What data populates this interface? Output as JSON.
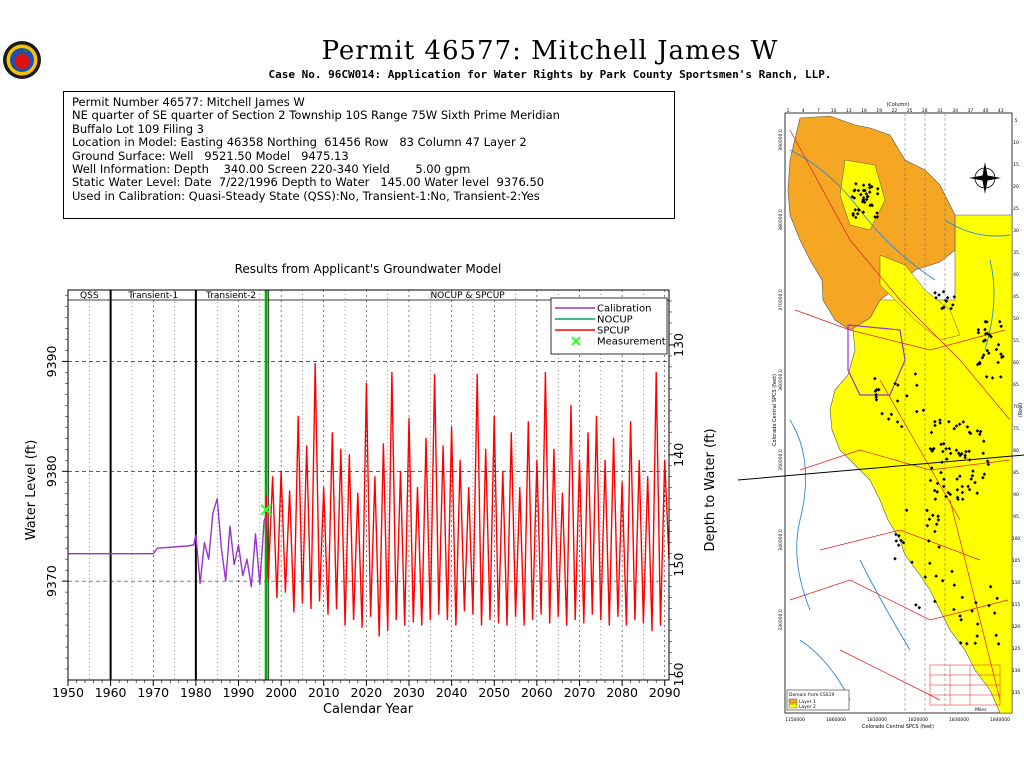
{
  "header": {
    "title": "Permit  46577:   Mitchell James W",
    "subtitle": "Case No. 96CW014: Application for Water Rights by Park County Sportsmen's Ranch, LLP."
  },
  "info": {
    "lines": [
      "Permit Number 46577: Mitchell James W",
      "",
      "NE quarter of SE quarter of Section 2 Township 10S Range 75W Sixth Prime Meridian",
      "Buffalo Lot 109 Filing 3",
      "Location in Model: Easting 46358 Northing  61456 Row   83 Column 47 Layer 2",
      "Ground Surface: Well   9521.50 Model   9475.13",
      "Well Information: Depth    340.00 Screen 220-340 Yield       5.00 gpm",
      "Static Water Level: Date  7/22/1996 Depth to Water   145.00 Water level  9376.50",
      "Used in Calibration: Quasi-Steady State (QSS):No, Transient-1:No, Transient-2:Yes"
    ]
  },
  "chart_data": {
    "type": "line",
    "title": "Results from Applicant's Groundwater Model",
    "xlabel": "Calendar Year",
    "ylabel": "Water Level (ft)",
    "y2label": "Depth to Water (ft)",
    "xlim": [
      1950,
      2091
    ],
    "ylim": [
      9361,
      9396.5
    ],
    "y2lim": [
      160.5,
      125
    ],
    "x_ticks": [
      1950,
      1960,
      1970,
      1980,
      1990,
      2000,
      2010,
      2020,
      2030,
      2040,
      2050,
      2060,
      2070,
      2080,
      2090
    ],
    "y_ticks": [
      9370,
      9380,
      9390
    ],
    "y2_ticks": [
      130,
      140,
      150,
      160
    ],
    "periods": [
      {
        "label": "QSS",
        "start": 1950,
        "end": 1960
      },
      {
        "label": "Transient-1",
        "start": 1960,
        "end": 1980
      },
      {
        "label": "Transient-2",
        "start": 1980,
        "end": 1996.5
      },
      {
        "label": "NOCUP  &  SPCUP",
        "start": 1996.5,
        "end": 2091
      }
    ],
    "period_dividers": [
      1960,
      1980
    ],
    "current_marker_year": 1996.5,
    "legend": {
      "placement": "top-right",
      "entries": [
        {
          "name": "Calibration",
          "color": "#9933cc",
          "kind": "line"
        },
        {
          "name": "NOCUP",
          "color": "#00aa66",
          "kind": "line"
        },
        {
          "name": "SPCUP",
          "color": "#ff0000",
          "kind": "line"
        },
        {
          "name": "Measurement",
          "color": "#33ff33",
          "kind": "marker"
        }
      ]
    },
    "series": [
      {
        "name": "Calibration",
        "color": "#9933cc",
        "x": [
          1950,
          1970,
          1971,
          1978,
          1979.5,
          1980,
          1981,
          1982,
          1983,
          1984,
          1985,
          1986,
          1987,
          1988,
          1989,
          1990,
          1991,
          1992,
          1993,
          1994,
          1995,
          1996,
          1996.5
        ],
        "y": [
          9372.5,
          9372.5,
          9373,
          9373.2,
          9373.3,
          9374.2,
          9369.8,
          9373.5,
          9372.0,
          9376.2,
          9377.5,
          9373.0,
          9370.0,
          9375.0,
          9371.5,
          9373.3,
          9370.5,
          9372.0,
          9369.5,
          9374.3,
          9369.7,
          9375.5,
          9376.0
        ]
      },
      {
        "name": "SPCUP",
        "color": "#ff0000",
        "x": [
          1996.5,
          1997,
          1998,
          1999,
          2000,
          2001,
          2002,
          2003,
          2004,
          2005,
          2006,
          2007,
          2008,
          2009,
          2010,
          2011,
          2012,
          2013,
          2014,
          2015,
          2016,
          2017,
          2018,
          2019,
          2020,
          2021,
          2022,
          2023,
          2024,
          2025,
          2026,
          2027,
          2028,
          2029,
          2030,
          2031,
          2032,
          2033,
          2034,
          2035,
          2036,
          2037,
          2038,
          2039,
          2040,
          2041,
          2042,
          2043,
          2044,
          2045,
          2046,
          2047,
          2048,
          2049,
          2050,
          2051,
          2052,
          2053,
          2054,
          2055,
          2056,
          2057,
          2058,
          2059,
          2060,
          2061,
          2062,
          2063,
          2064,
          2065,
          2066,
          2067,
          2068,
          2069,
          2070,
          2071,
          2072,
          2073,
          2074,
          2075,
          2076,
          2077,
          2078,
          2079,
          2080,
          2081,
          2082,
          2083,
          2084,
          2085,
          2086,
          2087,
          2088,
          2089,
          2090,
          2091
        ],
        "y": [
          9377.8,
          9370.2,
          9379.5,
          9368.5,
          9380.0,
          9369.0,
          9378.2,
          9367.2,
          9385.0,
          9368.0,
          9382.3,
          9367.5,
          9389.8,
          9368.2,
          9378.5,
          9367.0,
          9383.5,
          9367.5,
          9382.0,
          9366.0,
          9381.5,
          9366.5,
          9378.0,
          9365.8,
          9388.0,
          9366.8,
          9379.5,
          9365.0,
          9382.5,
          9365.5,
          9389.0,
          9366.5,
          9380.0,
          9366.0,
          9384.8,
          9366.3,
          9378.5,
          9366.0,
          9383.0,
          9366.5,
          9388.8,
          9367.0,
          9382.3,
          9366.5,
          9384.0,
          9366.0,
          9381.0,
          9367.3,
          9378.5,
          9367.0,
          9388.8,
          9366.0,
          9382.0,
          9366.5,
          9385.0,
          9366.2,
          9380.0,
          9366.0,
          9383.5,
          9366.8,
          9378.5,
          9366.0,
          9384.5,
          9366.5,
          9381.0,
          9367.0,
          9389.0,
          9366.2,
          9382.0,
          9366.8,
          9378.0,
          9366.0,
          9386.0,
          9366.5,
          9381.0,
          9366.2,
          9383.5,
          9367.0,
          9385.0,
          9366.5,
          9381.0,
          9366.0,
          9383.0,
          9366.8,
          9379.0,
          9366.0,
          9384.5,
          9366.5,
          9381.0,
          9366.2,
          9379.5,
          9365.5,
          9389.0,
          9366.0,
          9381.0,
          9372.0
        ]
      }
    ],
    "measurements": [
      {
        "x": 1996.5,
        "y": 9376.5
      }
    ]
  },
  "map": {
    "top_axis_label": "(Column)",
    "left_axis_label": "Colorado Central SPCS (feet)",
    "right_axis_label": "(Row)",
    "bottom_axis_label": "Colorado Central SPCS (feet)",
    "bottom_ticks": [
      "1150000",
      "1860000",
      "1810000",
      "1820000",
      "1830000",
      "1840000"
    ],
    "left_ticks": [
      "390000.0",
      "380000.0",
      "370000.0",
      "360000.0",
      "350000.0",
      "340000.0",
      "330000.0"
    ],
    "top_ticks": [
      "1",
      "4",
      "7",
      "10",
      "13",
      "16",
      "19",
      "22",
      "25",
      "28",
      "31",
      "34",
      "37",
      "40",
      "43"
    ],
    "right_ticks": [
      "5",
      "10",
      "15",
      "20",
      "25",
      "30",
      "35",
      "40",
      "45",
      "50",
      "55",
      "60",
      "65",
      "70",
      "75",
      "80",
      "85",
      "90",
      "95",
      "100",
      "105",
      "110",
      "115",
      "120",
      "125",
      "130",
      "135"
    ],
    "legend": {
      "title": "Domain from CSS19",
      "entries": [
        {
          "name": "Layer 1",
          "color": "#f5a623"
        },
        {
          "name": "Layer 2",
          "color": "#ffff00"
        }
      ]
    },
    "scale_label": "Miles"
  }
}
